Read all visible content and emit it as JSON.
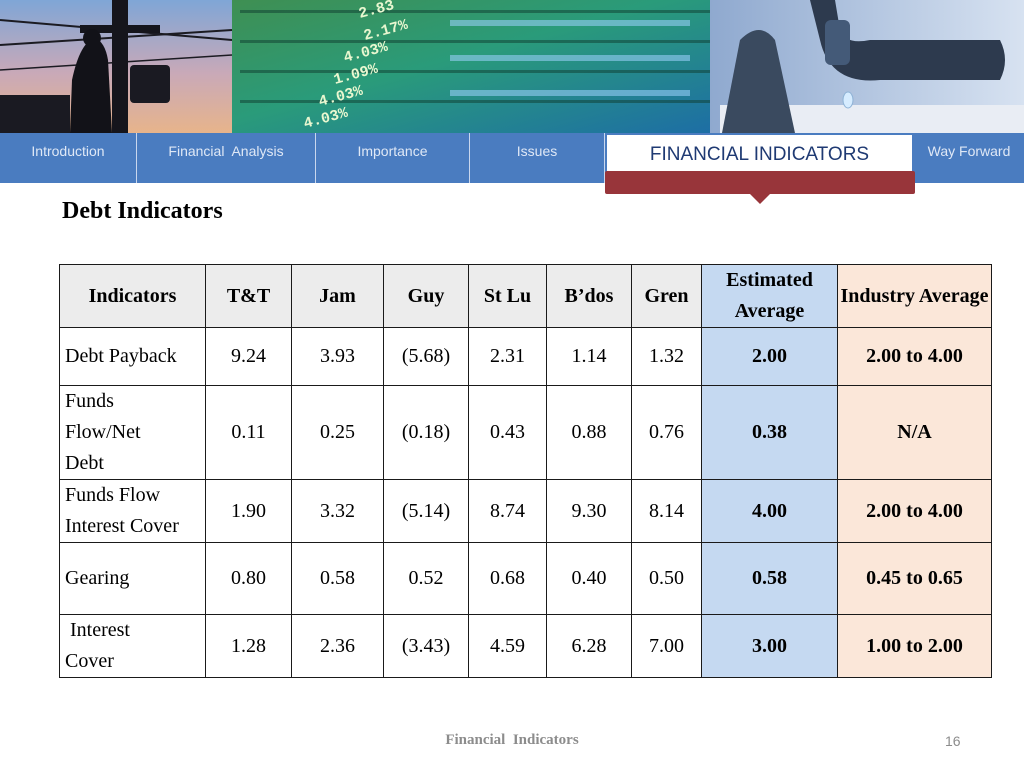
{
  "nav": {
    "items": [
      {
        "label": "Introduction",
        "active": false
      },
      {
        "label": "Financial  Analysis",
        "active": false
      },
      {
        "label": "Importance",
        "active": false
      },
      {
        "label": "Issues",
        "active": false
      },
      {
        "label": "FINANCIAL INDICATORS",
        "active": true
      },
      {
        "label": "Way Forward",
        "active": false
      }
    ]
  },
  "page": {
    "title": "Debt Indicators"
  },
  "table": {
    "headers": [
      "Indicators",
      "T&T",
      "Jam",
      "Guy",
      "St Lu",
      "B’dos",
      "Gren",
      "Estimated Average",
      "Industry Average"
    ],
    "rows": [
      [
        "Debt Payback",
        "9.24",
        "3.93",
        "(5.68)",
        "2.31",
        "1.14",
        "1.32",
        "2.00",
        "2.00 to 4.00"
      ],
      [
        "Funds Flow/Net Debt",
        "0.11",
        "0.25",
        "(0.18)",
        "0.43",
        "0.88",
        "0.76",
        "0.38",
        "N/A"
      ],
      [
        "Funds Flow Interest Cover",
        "1.90",
        "3.32",
        "(5.14)",
        "8.74",
        "9.30",
        "8.14",
        "4.00",
        "2.00 to 4.00"
      ],
      [
        "Gearing",
        "0.80",
        "0.58",
        "0.52",
        "0.68",
        "0.40",
        "0.50",
        "0.58",
        "0.45 to 0.65"
      ],
      [
        " Interest Cover",
        "1.28",
        "2.36",
        "(3.43)",
        "4.59",
        "6.28",
        "7.00",
        "3.00",
        "1.00 to 2.00"
      ]
    ]
  },
  "footer": {
    "title": "Financial  Indicators",
    "page_number": "16"
  },
  "colors": {
    "nav_bar": "#4a7cc0",
    "active_marker": "#98353a",
    "estimated_col": "#c5d9f1",
    "industry_col": "#fbe7d9"
  },
  "banner": {
    "photos": [
      "lineman-on-utility-pole",
      "stock-ticker-screen",
      "dripping-water-faucet"
    ],
    "ticker_texts": [
      "2.83",
      "2.17%",
      "4.03%",
      "1.09%",
      "4.03%",
      "4.03%",
      "4.03%"
    ]
  }
}
